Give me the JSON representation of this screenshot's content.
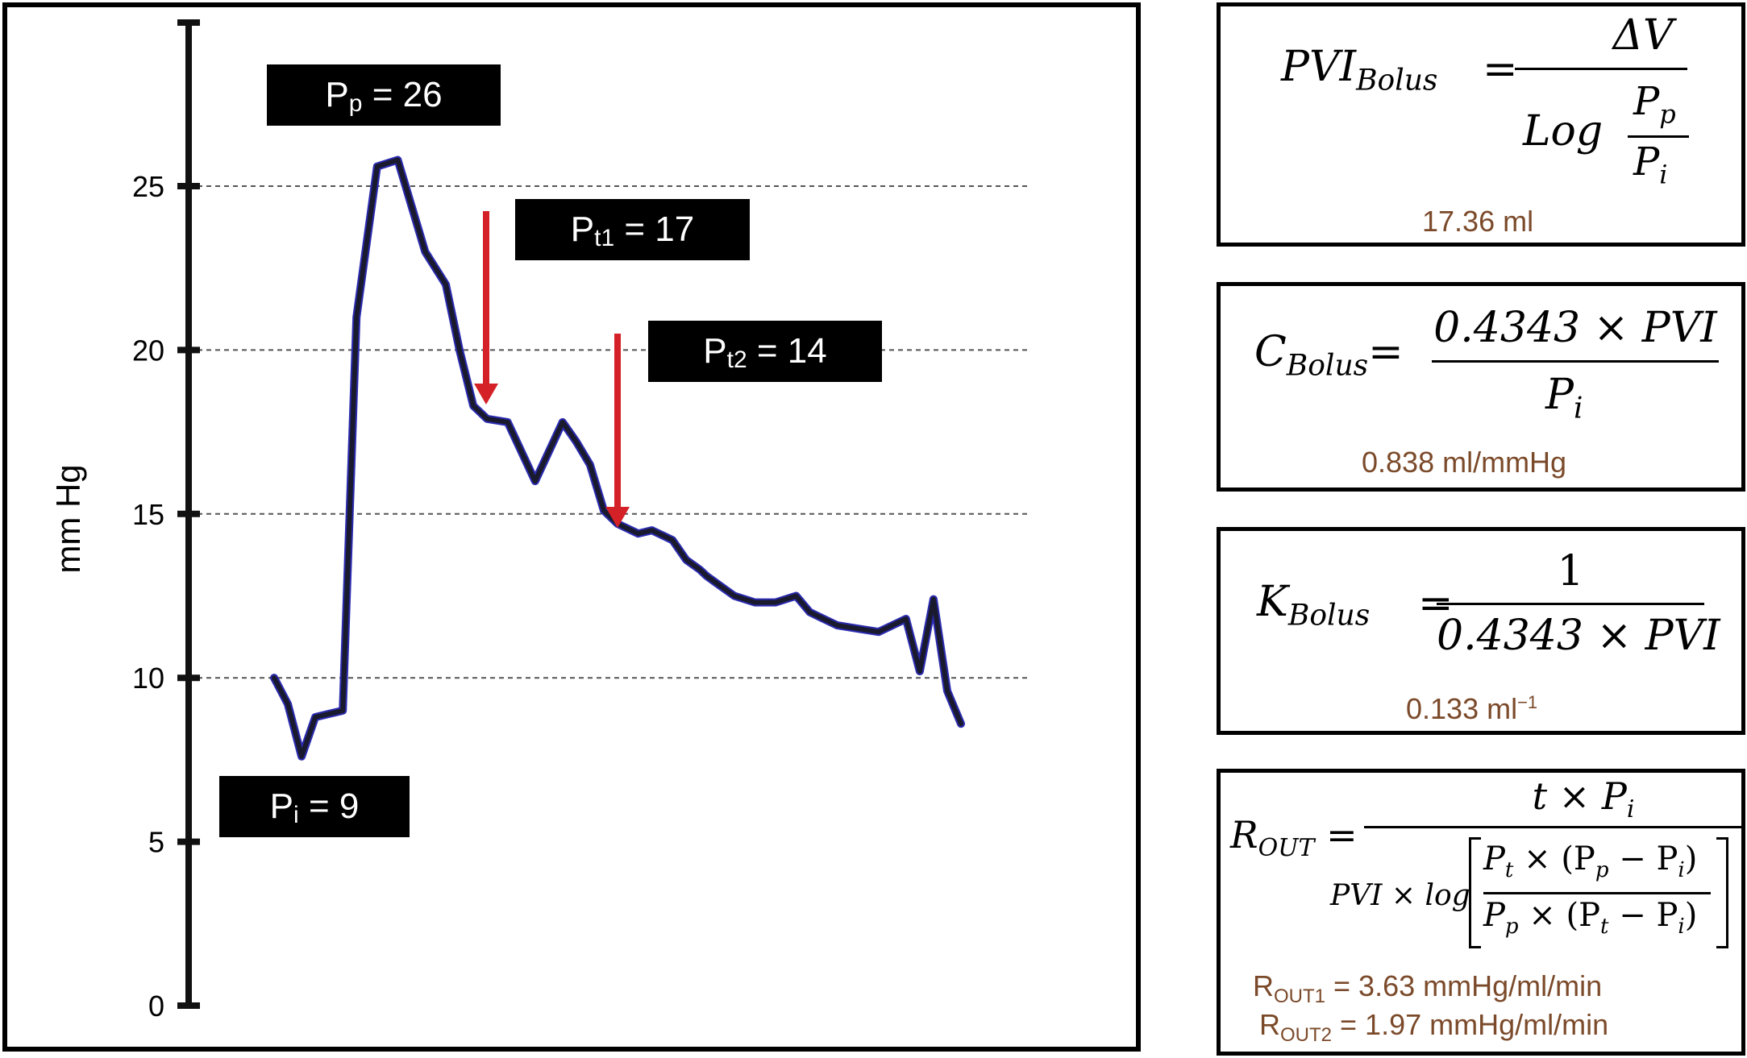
{
  "chart_data": {
    "type": "line",
    "ylabel": "mm Hg",
    "ylim": [
      0,
      30
    ],
    "yticks": [
      0,
      5,
      10,
      15,
      20,
      25
    ],
    "grid_y": [
      10,
      15,
      20,
      25
    ],
    "series": [
      {
        "color": "#1a1a2e",
        "x": [
          0,
          2,
          4,
          6,
          8,
          10,
          12,
          15,
          18,
          22,
          25,
          27,
          29,
          31,
          34,
          38,
          42,
          44,
          46,
          48,
          50,
          53,
          55,
          58,
          60,
          62,
          63,
          65,
          67,
          70,
          73,
          76,
          78,
          80,
          82,
          85,
          88,
          90,
          92,
          94,
          96,
          98,
          100
        ],
        "y": [
          10,
          9.2,
          7.6,
          8.8,
          8.9,
          9.0,
          21,
          25.6,
          25.8,
          23,
          22,
          20,
          18.3,
          17.9,
          17.8,
          16,
          17.8,
          17.2,
          16.5,
          15.1,
          14.7,
          14.4,
          14.5,
          14.2,
          13.6,
          13.3,
          13.1,
          12.8,
          12.5,
          12.3,
          12.3,
          12.5,
          12.0,
          11.8,
          11.6,
          11.5,
          11.4,
          11.6,
          11.8,
          10.2,
          12.4,
          9.6,
          8.6
        ]
      }
    ],
    "annotations": [
      {
        "base": "P",
        "sub": "p",
        "value": "= 26"
      },
      {
        "base": "P",
        "sub": "t1",
        "value": "= 17"
      },
      {
        "base": "P",
        "sub": "t2",
        "value": "= 14"
      },
      {
        "base": "P",
        "sub": "i",
        "value": "= 9"
      }
    ],
    "arrow_color": "#d42027"
  },
  "formulas": {
    "pvi": {
      "lhs": "PVI",
      "lhs_sub": "Bolus",
      "num": "ΔV",
      "den_log": "Log",
      "frac_num": "P",
      "frac_num_sub": "p",
      "frac_den": "P",
      "frac_den_sub": "i",
      "result": "17.36 ml"
    },
    "c": {
      "lhs": "C",
      "lhs_sub": "Bolus",
      "num": "0.4343 × PVI",
      "den": "P",
      "den_sub": "i",
      "result": "0.838 ml/mmHg"
    },
    "k": {
      "lhs": "K",
      "lhs_sub": "Bolus",
      "num": "1",
      "den": "0.4343 × PVI",
      "result_base": "0.133 ml",
      "result_sup": "−1"
    },
    "r": {
      "lhs": "R",
      "lhs_sub": "OUT",
      "num": "t × P",
      "num_sub": "i",
      "den_prefix": "PVI × log",
      "inner_num": "P",
      "inner_num_sub": "t",
      "inner_num_rest": " × (P",
      "inner_num_sub2": "p",
      "inner_num_rest2": " − P",
      "inner_num_sub3": "i",
      "inner_num_end": ")",
      "inner_den": "P",
      "inner_den_sub": "p",
      "inner_den_rest": " × (P",
      "inner_den_sub2": "t",
      "inner_den_rest2": " − P",
      "inner_den_sub3": "i",
      "inner_den_end": ")",
      "result1_base": "R",
      "result1_sub": "OUT1",
      "result1_val": " = 3.63 mmHg/ml/min",
      "result2_base": "R",
      "result2_sub": "OUT2",
      "result2_val": " = 1.97 mmHg/ml/min"
    }
  }
}
